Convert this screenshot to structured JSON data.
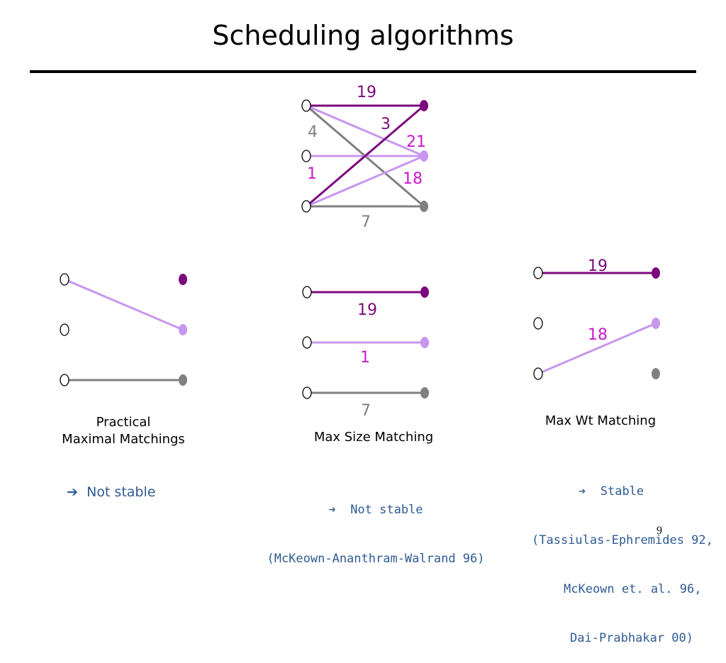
{
  "title": "Scheduling algorithms",
  "colors": {
    "dark_purple": "#7b0a7d",
    "light_purple": "#c797ee",
    "gray": "#808080",
    "magenta": "#cc18cc",
    "caption_blue": "#2f5b93"
  },
  "top_graph": {
    "edges": [
      {
        "from": "input-1",
        "to": "output-1",
        "weight": "19",
        "color": "dark_purple"
      },
      {
        "from": "input-1",
        "to": "output-3",
        "weight": "4",
        "color": "gray"
      },
      {
        "from": "input-3",
        "to": "output-1",
        "weight": "3",
        "color": "dark_purple"
      },
      {
        "from": "input-1",
        "to": "output-2",
        "weight": "21",
        "color": "light_purple"
      },
      {
        "from": "input-2",
        "to": "output-2",
        "weight": "1",
        "color": "light_purple"
      },
      {
        "from": "input-3",
        "to": "output-2",
        "weight": "18",
        "color": "light_purple"
      },
      {
        "from": "input-3",
        "to": "output-3",
        "weight": "7",
        "color": "gray"
      }
    ]
  },
  "maximal": {
    "caption_line1": "Practical",
    "caption_line2": "Maximal Matchings",
    "arrow": "➔",
    "note": "Not stable"
  },
  "max_size": {
    "weights": [
      "19",
      "1",
      "7"
    ],
    "caption": "Max Size Matching",
    "arrow": "➔",
    "note_line1": "Not stable",
    "note_line2": "(McKeown-Ananthram-Walrand 96)"
  },
  "max_wt": {
    "weights": [
      "19",
      "18"
    ],
    "caption": "Max Wt Matching",
    "arrow": "➔",
    "note_line1": "Stable",
    "note_line2": "(Tassiulas-Ephremides 92,",
    "note_line3": "McKeown et. al. 96,",
    "note_line4": "Dai-Prabhakar 00)"
  },
  "page_number": "9"
}
